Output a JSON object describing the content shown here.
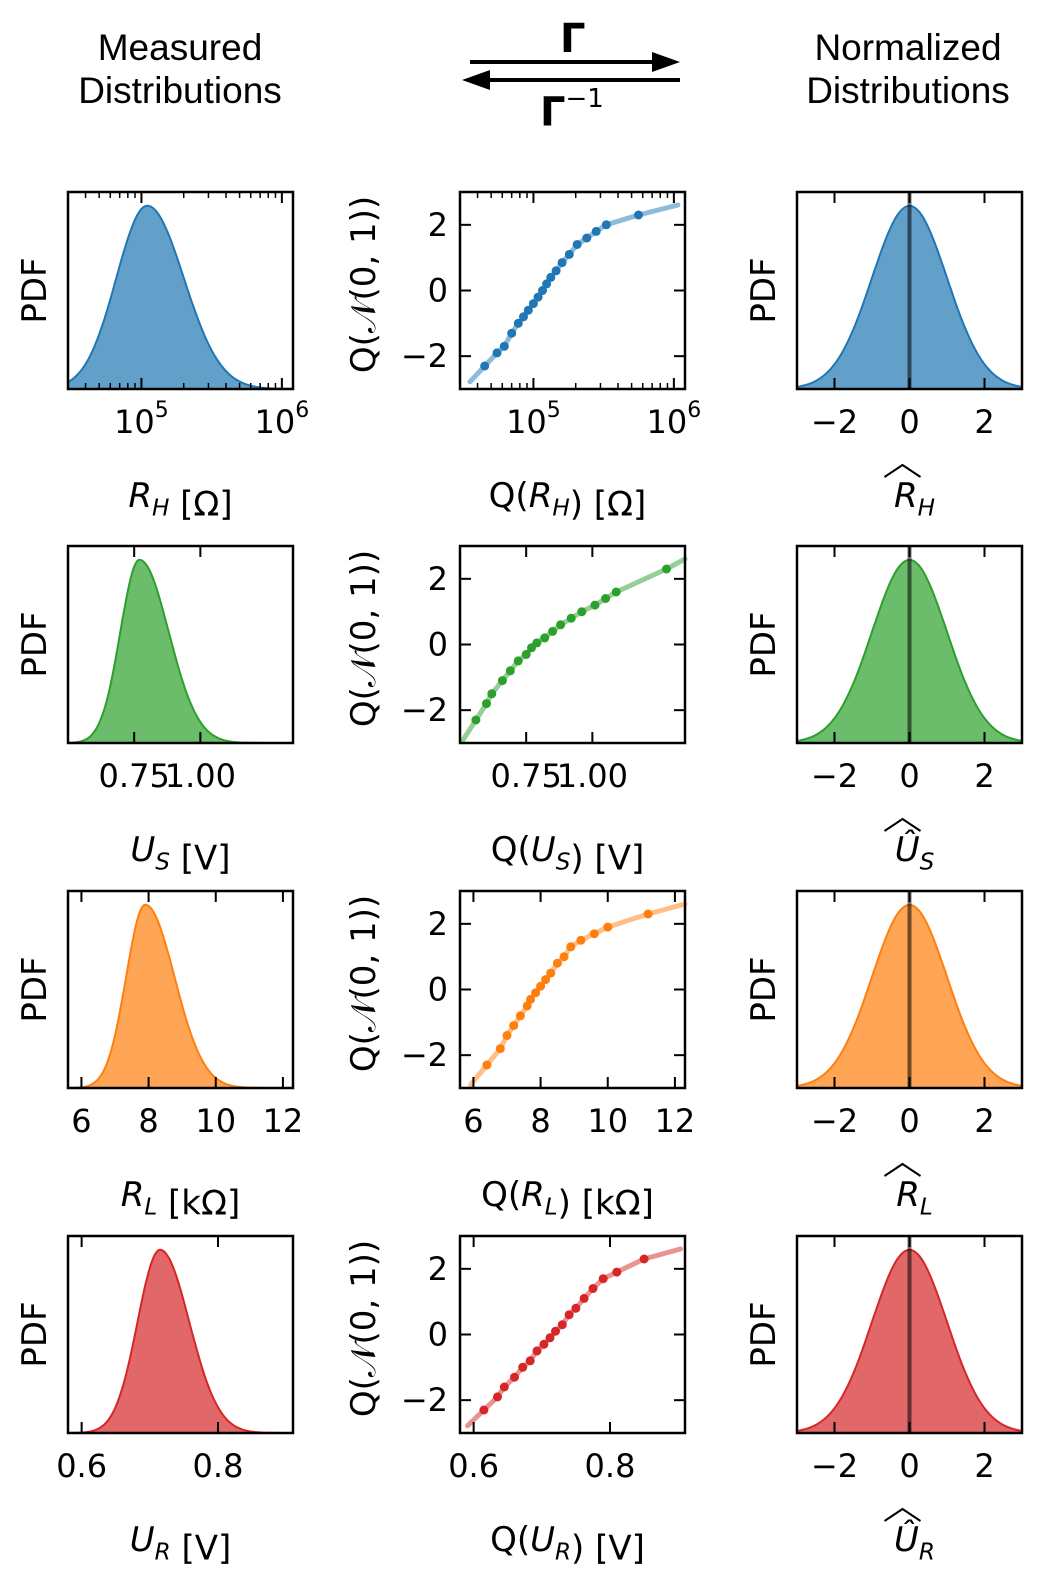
{
  "header": {
    "left_line1": "Measured",
    "left_line2": "Distributions",
    "right_line1": "Normalized",
    "right_line2": "Distributions",
    "gamma": "Γ",
    "gamma_inv_base": "Γ",
    "gamma_inv_sup": "−1"
  },
  "colors": {
    "blue": "#1f77b4",
    "green": "#2ca02c",
    "orange": "#ff7f0e",
    "red": "#d62728"
  },
  "rows": [
    {
      "color": "#1f77b4",
      "measured": {
        "ylabel": "PDF",
        "xlabel": "R_H [Ω]",
        "xscale": "log",
        "xlim": [
          30000,
          1200000
        ],
        "xticks": [
          100000,
          1000000
        ],
        "xtick_labels": [
          "10^5",
          "10^6"
        ],
        "peak": 110000
      },
      "qq": {
        "ylabel": "Q(𝒩(0, 1))",
        "xlabel": "Q(R_H) [Ω]",
        "xscale": "log",
        "xlim": [
          30000,
          1200000
        ],
        "ylim": [
          -3,
          3
        ],
        "yticks": [
          -2,
          0,
          2
        ],
        "xticks": [
          100000,
          1000000
        ],
        "xtick_labels": [
          "10^5",
          "10^6"
        ],
        "points": [
          [
            45000,
            -2.3
          ],
          [
            55000,
            -1.9
          ],
          [
            62000,
            -1.7
          ],
          [
            70000,
            -1.3
          ],
          [
            78000,
            -1.0
          ],
          [
            85000,
            -0.8
          ],
          [
            92000,
            -0.6
          ],
          [
            100000,
            -0.4
          ],
          [
            108000,
            -0.2
          ],
          [
            116000,
            0.0
          ],
          [
            124000,
            0.2
          ],
          [
            133000,
            0.4
          ],
          [
            145000,
            0.6
          ],
          [
            160000,
            0.85
          ],
          [
            180000,
            1.1
          ],
          [
            205000,
            1.4
          ],
          [
            240000,
            1.6
          ],
          [
            280000,
            1.8
          ],
          [
            330000,
            2.0
          ],
          [
            560000,
            2.3
          ]
        ]
      },
      "normalized": {
        "ylabel": "PDF",
        "xlabel": "R̂_H",
        "xlim": [
          -3,
          3
        ],
        "xticks": [
          -2,
          0,
          2
        ]
      }
    },
    {
      "color": "#2ca02c",
      "measured": {
        "ylabel": "PDF",
        "xlabel": "U_S [V]",
        "xscale": "linear",
        "xlim": [
          0.5,
          1.35
        ],
        "xticks": [
          0.75,
          1.0
        ],
        "xtick_labels": [
          "0.75",
          "1.00"
        ],
        "peak": 0.77
      },
      "qq": {
        "ylabel": "Q(𝒩(0, 1))",
        "xlabel": "Q(U_S) [V]",
        "xscale": "linear",
        "xlim": [
          0.5,
          1.35
        ],
        "ylim": [
          -3,
          3
        ],
        "yticks": [
          -2,
          0,
          2
        ],
        "xticks": [
          0.75,
          1.0
        ],
        "xtick_labels": [
          "0.75",
          "1.00"
        ],
        "points": [
          [
            0.56,
            -2.3
          ],
          [
            0.6,
            -1.8
          ],
          [
            0.62,
            -1.5
          ],
          [
            0.66,
            -1.1
          ],
          [
            0.69,
            -0.8
          ],
          [
            0.72,
            -0.5
          ],
          [
            0.75,
            -0.3
          ],
          [
            0.77,
            -0.1
          ],
          [
            0.79,
            0.05
          ],
          [
            0.82,
            0.2
          ],
          [
            0.85,
            0.4
          ],
          [
            0.88,
            0.6
          ],
          [
            0.92,
            0.8
          ],
          [
            0.96,
            1.0
          ],
          [
            1.01,
            1.2
          ],
          [
            1.05,
            1.4
          ],
          [
            1.09,
            1.6
          ],
          [
            1.28,
            2.3
          ]
        ]
      },
      "normalized": {
        "ylabel": "PDF",
        "xlabel": "Û_S",
        "xlim": [
          -3,
          3
        ],
        "xticks": [
          -2,
          0,
          2
        ]
      }
    },
    {
      "color": "#ff7f0e",
      "measured": {
        "ylabel": "PDF",
        "xlabel": "R_L [kΩ]",
        "xscale": "linear",
        "xlim": [
          5.6,
          12.3
        ],
        "xticks": [
          6,
          8,
          10,
          12
        ],
        "xtick_labels": [
          "6",
          "8",
          "10",
          "12"
        ],
        "peak": 7.9
      },
      "qq": {
        "ylabel": "Q(𝒩(0, 1))",
        "xlabel": "Q(R_L) [kΩ]",
        "xscale": "linear",
        "xlim": [
          5.6,
          12.3
        ],
        "ylim": [
          -3,
          3
        ],
        "yticks": [
          -2,
          0,
          2
        ],
        "xticks": [
          6,
          8,
          10,
          12
        ],
        "xtick_labels": [
          "6",
          "8",
          "10",
          "12"
        ],
        "points": [
          [
            6.4,
            -2.3
          ],
          [
            6.8,
            -1.8
          ],
          [
            7.0,
            -1.4
          ],
          [
            7.2,
            -1.1
          ],
          [
            7.4,
            -0.8
          ],
          [
            7.6,
            -0.5
          ],
          [
            7.7,
            -0.3
          ],
          [
            7.85,
            -0.1
          ],
          [
            8.0,
            0.1
          ],
          [
            8.15,
            0.3
          ],
          [
            8.3,
            0.5
          ],
          [
            8.5,
            0.8
          ],
          [
            8.7,
            1.0
          ],
          [
            8.9,
            1.3
          ],
          [
            9.2,
            1.5
          ],
          [
            9.6,
            1.7
          ],
          [
            10.0,
            1.9
          ],
          [
            11.2,
            2.3
          ]
        ]
      },
      "normalized": {
        "ylabel": "PDF",
        "xlabel": "R̂_L",
        "xlim": [
          -3,
          3
        ],
        "xticks": [
          -2,
          0,
          2
        ]
      }
    },
    {
      "color": "#d62728",
      "measured": {
        "ylabel": "PDF",
        "xlabel": "U_R [V]",
        "xscale": "linear",
        "xlim": [
          0.58,
          0.91
        ],
        "xticks": [
          0.6,
          0.8
        ],
        "xtick_labels": [
          "0.6",
          "0.8"
        ],
        "peak": 0.715
      },
      "qq": {
        "ylabel": "Q(𝒩(0, 1))",
        "xlabel": "Q(U_R) [V]",
        "xscale": "linear",
        "xlim": [
          0.58,
          0.91
        ],
        "ylim": [
          -3,
          3
        ],
        "yticks": [
          -2,
          0,
          2
        ],
        "xticks": [
          0.6,
          0.8
        ],
        "xtick_labels": [
          "0.6",
          "0.8"
        ],
        "points": [
          [
            0.615,
            -2.3
          ],
          [
            0.635,
            -1.9
          ],
          [
            0.645,
            -1.6
          ],
          [
            0.66,
            -1.3
          ],
          [
            0.672,
            -1.0
          ],
          [
            0.683,
            -0.8
          ],
          [
            0.693,
            -0.5
          ],
          [
            0.703,
            -0.3
          ],
          [
            0.712,
            -0.1
          ],
          [
            0.72,
            0.1
          ],
          [
            0.73,
            0.3
          ],
          [
            0.74,
            0.6
          ],
          [
            0.75,
            0.8
          ],
          [
            0.762,
            1.1
          ],
          [
            0.775,
            1.4
          ],
          [
            0.79,
            1.7
          ],
          [
            0.81,
            1.9
          ],
          [
            0.85,
            2.3
          ]
        ]
      },
      "normalized": {
        "ylabel": "PDF",
        "xlabel": "Û_R",
        "xlim": [
          -3,
          3
        ],
        "xticks": [
          -2,
          0,
          2
        ]
      }
    }
  ]
}
